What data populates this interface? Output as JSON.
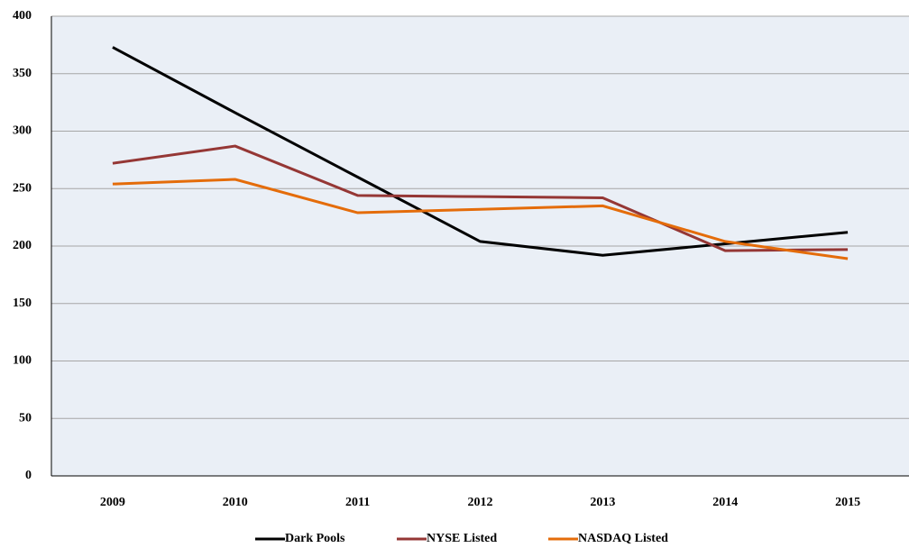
{
  "chart_data": {
    "type": "line",
    "categories": [
      "2009",
      "2010",
      "2011",
      "2012",
      "2013",
      "2014",
      "2015"
    ],
    "series": [
      {
        "name": "Dark Pools",
        "color": "#000000",
        "values": [
          373,
          316,
          260,
          204,
          192,
          202,
          212
        ]
      },
      {
        "name": "NYSE Listed",
        "color": "#953735",
        "values": [
          272,
          287,
          244,
          243,
          242,
          196,
          197
        ]
      },
      {
        "name": "NASDAQ Listed",
        "color": "#e46c0a",
        "values": [
          254,
          258,
          229,
          232,
          235,
          204,
          189
        ]
      }
    ],
    "ylim": [
      0,
      400
    ],
    "yticks": [
      0,
      50,
      100,
      150,
      200,
      250,
      300,
      350,
      400
    ],
    "grid": true,
    "legend": "bottom"
  }
}
